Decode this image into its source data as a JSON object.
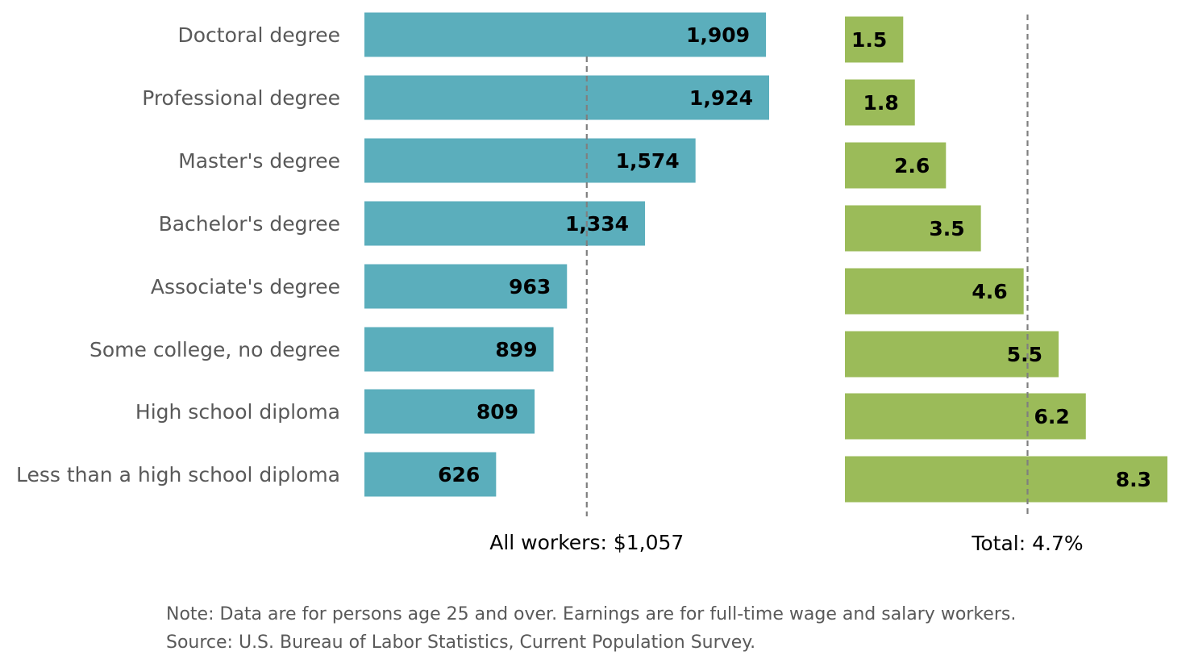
{
  "chart_data": [
    {
      "type": "bar",
      "orientation": "horizontal",
      "categories": [
        "Doctoral degree",
        "Professional degree",
        "Master's degree",
        "Bachelor's degree",
        "Associate's degree",
        "Some college, no degree",
        "High school diploma",
        "Less than a high school diploma"
      ],
      "values": [
        1909,
        1924,
        1574,
        1334,
        963,
        899,
        809,
        626
      ],
      "value_labels": [
        "1,909",
        "1,924",
        "1,574",
        "1,334",
        "963",
        "899",
        "809",
        "626"
      ],
      "color": "#5BAEBC",
      "reference_line": {
        "value": 1057,
        "label": "All workers: $1,057",
        "style": "dashed"
      },
      "xlim": [
        0,
        1924
      ],
      "grid": false,
      "title": "",
      "xlabel": "",
      "ylabel": ""
    },
    {
      "type": "bar",
      "orientation": "horizontal",
      "categories": [
        "Doctoral degree",
        "Professional degree",
        "Master's degree",
        "Bachelor's degree",
        "Associate's degree",
        "Some college, no degree",
        "High school diploma",
        "Less than a high school diploma"
      ],
      "values": [
        1.5,
        1.8,
        2.6,
        3.5,
        4.6,
        5.5,
        6.2,
        8.3
      ],
      "value_labels": [
        "1.5",
        "1.8",
        "2.6",
        "3.5",
        "4.6",
        "5.5",
        "6.2",
        "8.3"
      ],
      "color": "#9BBB59",
      "reference_line": {
        "value": 4.7,
        "label": "Total: 4.7%",
        "style": "dashed"
      },
      "xlim": [
        0,
        8.3
      ],
      "grid": false,
      "title": "",
      "xlabel": "",
      "ylabel": ""
    }
  ],
  "notes": {
    "line1": "Note: Data are for persons age 25 and over. Earnings are for full-time wage and salary workers.",
    "line2": "Source: U.S. Bureau of Labor Statistics, Current Population Survey."
  }
}
